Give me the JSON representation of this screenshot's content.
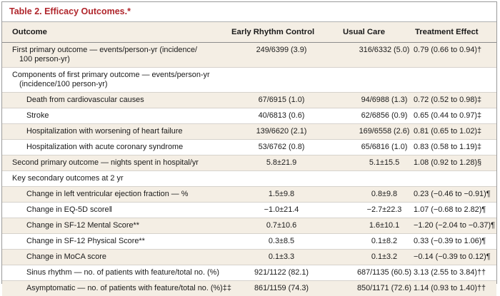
{
  "table": {
    "title": "Table 2. Efficacy Outcomes.*",
    "columns": [
      "Outcome",
      "Early Rhythm Control",
      "Usual Care",
      "Treatment Effect"
    ],
    "rows": [
      {
        "label": "First primary outcome — events/person-yr (incidence/",
        "label2": "100 person-yr)",
        "early": "249/6399 (3.9)",
        "usual": "316/6332 (5.0)",
        "effect": "0.79 (0.66 to 0.94)†"
      },
      {
        "label": "Components of first primary outcome — events/person-yr",
        "label2": "(incidence/100 person-yr)",
        "early": "",
        "usual": "",
        "effect": ""
      },
      {
        "label": "Death from cardiovascular causes",
        "early": "67/6915 (1.0)",
        "usual": "94/6988 (1.3)",
        "effect": "0.72 (0.52 to 0.98)‡"
      },
      {
        "label": "Stroke",
        "early": "40/6813 (0.6)",
        "usual": "62/6856 (0.9)",
        "effect": "0.65 (0.44 to 0.97)‡"
      },
      {
        "label": "Hospitalization with worsening of heart failure",
        "early": "139/6620 (2.1)",
        "usual": "169/6558 (2.6)",
        "effect": "0.81 (0.65 to 1.02)‡"
      },
      {
        "label": "Hospitalization with acute coronary syndrome",
        "early": "53/6762 (0.8)",
        "usual": "65/6816 (1.0)",
        "effect": "0.83 (0.58 to 1.19)‡"
      },
      {
        "label": "Second primary outcome — nights spent in hospital/yr",
        "early": "5.8±21.9",
        "usual": "5.1±15.5",
        "effect": "1.08 (0.92 to 1.28)§"
      },
      {
        "label": "Key secondary outcomes at 2 yr",
        "early": "",
        "usual": "",
        "effect": ""
      },
      {
        "label": "Change in left ventricular ejection fraction — %",
        "early": "1.5±9.8",
        "usual": "0.8±9.8",
        "effect": "0.23 (−0.46 to −0.91)¶"
      },
      {
        "label": "Change in EQ-5D score‖",
        "early": "−1.0±21.4",
        "usual": "−2.7±22.3",
        "effect": "1.07 (−0.68 to 2.82)¶"
      },
      {
        "label": "Change in SF-12 Mental Score**",
        "early": "0.7±10.6",
        "usual": "1.6±10.1",
        "effect": "−1.20 (−2.04 to −0.37)¶"
      },
      {
        "label": "Change in SF-12 Physical Score**",
        "early": "0.3±8.5",
        "usual": "0.1±8.2",
        "effect": "0.33 (−0.39 to 1.06)¶"
      },
      {
        "label": "Change in MoCA score",
        "early": "0.1±3.3",
        "usual": "0.1±3.2",
        "effect": "−0.14 (−0.39 to 0.12)¶"
      },
      {
        "label": "Sinus rhythm — no. of patients with feature/total no. (%)",
        "early": "921/1122 (82.1)",
        "usual": "687/1135 (60.5)",
        "effect": "3.13 (2.55 to 3.84)††"
      },
      {
        "label": "Asymptomatic — no. of patients with feature/total no. (%)‡‡",
        "early": "861/1159 (74.3)",
        "usual": "850/1171 (72.6)",
        "effect": "1.14 (0.93 to 1.40)††"
      }
    ]
  }
}
